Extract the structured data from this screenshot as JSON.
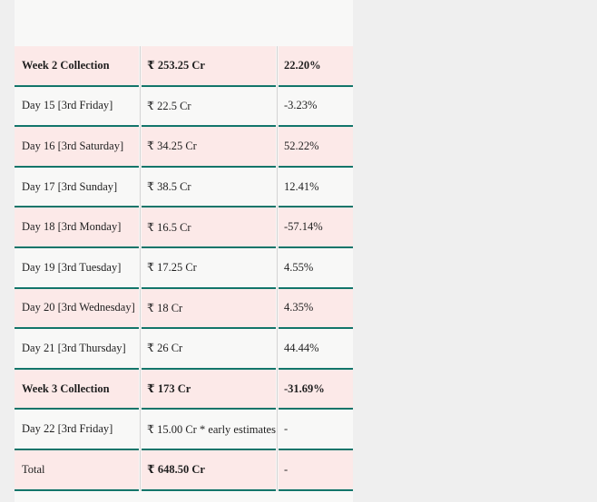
{
  "page": {
    "background_color": "#efefef",
    "table_background_light": "#f8f8f7",
    "table_background_pink": "#fce9e8",
    "row_border_color": "#12756a",
    "column_separator_color": "#d4d4d4"
  },
  "table": {
    "rows": [
      {
        "label": "Week 2 Collection",
        "value": "₹ 253.25 Cr",
        "change": "22.20%"
      },
      {
        "label": "Day 15 [3rd Friday]",
        "value": "₹ 22.5 Cr",
        "change": "-3.23%"
      },
      {
        "label": "Day 16 [3rd Saturday]",
        "value": "₹ 34.25 Cr",
        "change": "52.22%"
      },
      {
        "label": "Day 17 [3rd Sunday]",
        "value": "₹ 38.5 Cr",
        "change": "12.41%"
      },
      {
        "label": "Day 18 [3rd Monday]",
        "value": "₹ 16.5 Cr",
        "change": "-57.14%"
      },
      {
        "label": "Day 19 [3rd Tuesday]",
        "value": "₹ 17.25 Cr",
        "change": "4.55%"
      },
      {
        "label": "Day 20 [3rd Wednesday]",
        "value": "₹ 18 Cr",
        "change": "4.35%"
      },
      {
        "label": "Day 21 [3rd Thursday]",
        "value": "₹ 26 Cr",
        "change": "44.44%"
      },
      {
        "label": "Week 3 Collection",
        "value": "₹ 173 Cr",
        "change": "-31.69%"
      },
      {
        "label": "Day 22 [3rd Friday]",
        "value": "₹ 15.00 Cr * early estimates",
        "change": "-"
      },
      {
        "label": "Total",
        "value": "₹ 648.50 Cr",
        "change": "-"
      }
    ]
  }
}
